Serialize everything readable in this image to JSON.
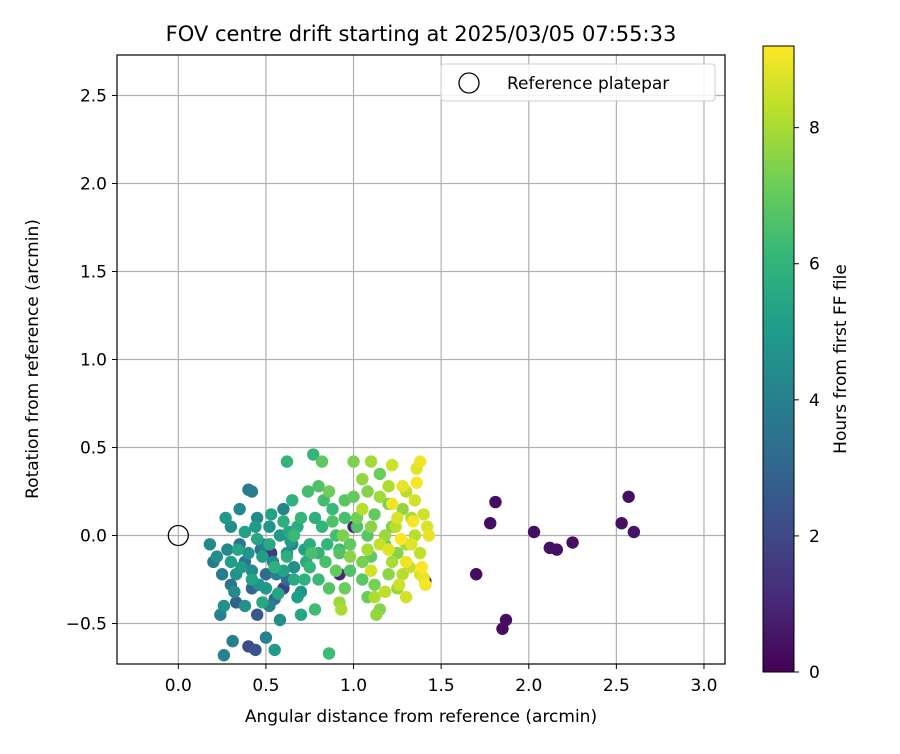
{
  "chart_data": {
    "type": "scatter",
    "title": "FOV centre drift starting at 2025/03/05 07:55:33",
    "xlabel": "Angular distance from reference (arcmin)",
    "ylabel": "Rotation from reference (arcmin)",
    "xlim": [
      -0.35,
      3.12
    ],
    "ylim": [
      -0.73,
      2.73
    ],
    "xticks": [
      0.0,
      0.5,
      1.0,
      1.5,
      2.0,
      2.5,
      3.0
    ],
    "yticks": [
      -0.5,
      0.0,
      0.5,
      1.0,
      1.5,
      2.0,
      2.5
    ],
    "grid": true,
    "legend": {
      "position": "top-right",
      "entries": [
        "Reference platepar"
      ]
    },
    "reference_point": {
      "x": 0.0,
      "y": 0.0,
      "label": "Reference platepar"
    },
    "colorbar": {
      "label": "Hours from first FF file",
      "colormap": "viridis",
      "range": [
        0,
        9.2
      ],
      "ticks": [
        0,
        2,
        4,
        6,
        8
      ]
    },
    "points": [
      {
        "x": 1.7,
        "y": -0.22,
        "h": 0.3
      },
      {
        "x": 1.78,
        "y": 0.07,
        "h": 0.3
      },
      {
        "x": 1.81,
        "y": 0.19,
        "h": 0.3
      },
      {
        "x": 1.85,
        "y": -0.53,
        "h": 0.3
      },
      {
        "x": 1.87,
        "y": -0.48,
        "h": 0.3
      },
      {
        "x": 2.03,
        "y": 0.02,
        "h": 0.4
      },
      {
        "x": 2.12,
        "y": -0.07,
        "h": 0.4
      },
      {
        "x": 2.16,
        "y": -0.08,
        "h": 0.4
      },
      {
        "x": 2.25,
        "y": -0.04,
        "h": 0.4
      },
      {
        "x": 2.53,
        "y": 0.07,
        "h": 0.4
      },
      {
        "x": 2.57,
        "y": 0.22,
        "h": 0.4
      },
      {
        "x": 2.6,
        "y": 0.02,
        "h": 0.5
      },
      {
        "x": 1.41,
        "y": -0.26,
        "h": 0.8
      },
      {
        "x": 1.0,
        "y": 0.05,
        "h": 0.9
      },
      {
        "x": 0.92,
        "y": -0.22,
        "h": 1.0
      },
      {
        "x": 0.53,
        "y": -0.1,
        "h": 1.5
      },
      {
        "x": 0.6,
        "y": -0.3,
        "h": 1.8
      },
      {
        "x": 0.4,
        "y": -0.63,
        "h": 2.0
      },
      {
        "x": 0.44,
        "y": -0.65,
        "h": 2.3
      },
      {
        "x": 0.45,
        "y": -0.45,
        "h": 2.5
      },
      {
        "x": 0.33,
        "y": -0.38,
        "h": 2.8
      },
      {
        "x": 0.42,
        "y": -0.3,
        "h": 3.0
      },
      {
        "x": 0.5,
        "y": -0.22,
        "h": 3.2
      },
      {
        "x": 0.55,
        "y": -0.36,
        "h": 3.3
      },
      {
        "x": 0.62,
        "y": -0.25,
        "h": 3.4
      },
      {
        "x": 0.38,
        "y": -0.15,
        "h": 3.5
      },
      {
        "x": 0.47,
        "y": -0.08,
        "h": 3.5
      },
      {
        "x": 0.3,
        "y": -0.28,
        "h": 3.6
      },
      {
        "x": 0.35,
        "y": -0.05,
        "h": 3.6
      },
      {
        "x": 0.2,
        "y": -0.15,
        "h": 3.7
      },
      {
        "x": 0.25,
        "y": -0.22,
        "h": 3.8
      },
      {
        "x": 0.4,
        "y": 0.26,
        "h": 3.8
      },
      {
        "x": 0.42,
        "y": 0.25,
        "h": 3.9
      },
      {
        "x": 0.31,
        "y": -0.6,
        "h": 3.9
      },
      {
        "x": 0.48,
        "y": -0.05,
        "h": 3.9
      },
      {
        "x": 0.52,
        "y": -0.4,
        "h": 4.0
      },
      {
        "x": 0.24,
        "y": -0.45,
        "h": 4.0
      },
      {
        "x": 0.26,
        "y": -0.68,
        "h": 4.1
      },
      {
        "x": 0.5,
        "y": -0.58,
        "h": 4.1
      },
      {
        "x": 0.56,
        "y": -0.22,
        "h": 4.1
      },
      {
        "x": 0.65,
        "y": -0.05,
        "h": 4.2
      },
      {
        "x": 0.6,
        "y": 0.15,
        "h": 4.2
      },
      {
        "x": 0.35,
        "y": 0.15,
        "h": 4.3
      },
      {
        "x": 0.45,
        "y": 0.1,
        "h": 4.3
      },
      {
        "x": 0.28,
        "y": -0.08,
        "h": 4.3
      },
      {
        "x": 0.18,
        "y": -0.05,
        "h": 4.4
      },
      {
        "x": 0.32,
        "y": -0.32,
        "h": 4.4
      },
      {
        "x": 0.54,
        "y": -0.15,
        "h": 4.4
      },
      {
        "x": 0.42,
        "y": -0.2,
        "h": 4.5
      },
      {
        "x": 0.58,
        "y": -0.48,
        "h": 4.5
      },
      {
        "x": 0.3,
        "y": 0.05,
        "h": 4.5
      },
      {
        "x": 0.26,
        "y": -0.4,
        "h": 4.6
      },
      {
        "x": 0.38,
        "y": -0.4,
        "h": 4.6
      },
      {
        "x": 0.66,
        "y": -0.18,
        "h": 4.6
      },
      {
        "x": 0.22,
        "y": -0.12,
        "h": 4.6
      },
      {
        "x": 0.46,
        "y": -0.28,
        "h": 4.7
      },
      {
        "x": 0.7,
        "y": -0.32,
        "h": 4.7
      },
      {
        "x": 0.33,
        "y": -0.22,
        "h": 4.7
      },
      {
        "x": 0.52,
        "y": 0.05,
        "h": 4.8
      },
      {
        "x": 0.62,
        "y": -0.1,
        "h": 4.8
      },
      {
        "x": 0.4,
        "y": -0.1,
        "h": 4.8
      },
      {
        "x": 0.27,
        "y": 0.1,
        "h": 4.9
      },
      {
        "x": 0.5,
        "y": -0.3,
        "h": 4.9
      },
      {
        "x": 0.58,
        "y": 0.0,
        "h": 4.9
      },
      {
        "x": 0.36,
        "y": -0.18,
        "h": 5.0
      },
      {
        "x": 0.44,
        "y": 0.05,
        "h": 5.0
      },
      {
        "x": 0.55,
        "y": -0.65,
        "h": 5.0
      },
      {
        "x": 0.68,
        "y": -0.35,
        "h": 5.1
      },
      {
        "x": 0.48,
        "y": -0.12,
        "h": 5.1
      },
      {
        "x": 0.64,
        "y": -0.03,
        "h": 5.1
      },
      {
        "x": 0.3,
        "y": -0.15,
        "h": 5.2
      },
      {
        "x": 0.72,
        "y": -0.08,
        "h": 5.2
      },
      {
        "x": 0.38,
        "y": 0.02,
        "h": 5.2
      },
      {
        "x": 0.6,
        "y": -0.2,
        "h": 5.3
      },
      {
        "x": 0.42,
        "y": -0.25,
        "h": 5.3
      },
      {
        "x": 0.53,
        "y": 0.12,
        "h": 5.3
      },
      {
        "x": 0.7,
        "y": -0.45,
        "h": 5.4
      },
      {
        "x": 0.34,
        "y": -0.08,
        "h": 5.4
      },
      {
        "x": 0.57,
        "y": -0.33,
        "h": 5.4
      },
      {
        "x": 0.45,
        "y": -0.02,
        "h": 5.5
      },
      {
        "x": 0.63,
        "y": 0.02,
        "h": 5.5
      },
      {
        "x": 0.48,
        "y": -0.38,
        "h": 5.5
      },
      {
        "x": 0.66,
        "y": -0.25,
        "h": 5.6
      },
      {
        "x": 0.73,
        "y": -0.15,
        "h": 5.6
      },
      {
        "x": 0.52,
        "y": -0.05,
        "h": 5.6
      },
      {
        "x": 0.6,
        "y": 0.08,
        "h": 5.7
      },
      {
        "x": 0.75,
        "y": -0.05,
        "h": 5.7
      },
      {
        "x": 0.68,
        "y": 0.05,
        "h": 5.7
      },
      {
        "x": 0.62,
        "y": -0.12,
        "h": 5.8
      },
      {
        "x": 0.78,
        "y": 0.1,
        "h": 5.8
      },
      {
        "x": 0.55,
        "y": -0.18,
        "h": 5.8
      },
      {
        "x": 0.8,
        "y": -0.1,
        "h": 5.9
      },
      {
        "x": 0.65,
        "y": 0.2,
        "h": 5.9
      },
      {
        "x": 0.72,
        "y": -0.25,
        "h": 5.9
      },
      {
        "x": 0.62,
        "y": 0.42,
        "h": 6.0
      },
      {
        "x": 0.77,
        "y": 0.46,
        "h": 6.0
      },
      {
        "x": 0.82,
        "y": 0.05,
        "h": 6.0
      },
      {
        "x": 0.7,
        "y": 0.1,
        "h": 6.1
      },
      {
        "x": 0.85,
        "y": -0.05,
        "h": 6.1
      },
      {
        "x": 0.75,
        "y": -0.18,
        "h": 6.1
      },
      {
        "x": 0.88,
        "y": 0.15,
        "h": 6.2
      },
      {
        "x": 0.66,
        "y": 0.0,
        "h": 6.2
      },
      {
        "x": 0.8,
        "y": -0.25,
        "h": 6.2
      },
      {
        "x": 0.86,
        "y": -0.67,
        "h": 6.3
      },
      {
        "x": 0.78,
        "y": -0.42,
        "h": 6.3
      },
      {
        "x": 0.92,
        "y": -0.08,
        "h": 6.3
      },
      {
        "x": 0.74,
        "y": 0.25,
        "h": 6.4
      },
      {
        "x": 0.83,
        "y": 0.2,
        "h": 6.4
      },
      {
        "x": 0.9,
        "y": 0.0,
        "h": 6.4
      },
      {
        "x": 0.76,
        "y": -0.1,
        "h": 6.5
      },
      {
        "x": 0.95,
        "y": 0.1,
        "h": 6.5
      },
      {
        "x": 0.84,
        "y": -0.15,
        "h": 6.5
      },
      {
        "x": 0.98,
        "y": -0.2,
        "h": 6.6
      },
      {
        "x": 0.88,
        "y": 0.08,
        "h": 6.6
      },
      {
        "x": 0.8,
        "y": 0.28,
        "h": 6.6
      },
      {
        "x": 1.02,
        "y": 0.05,
        "h": 6.7
      },
      {
        "x": 0.92,
        "y": -0.1,
        "h": 6.7
      },
      {
        "x": 0.86,
        "y": -0.3,
        "h": 6.7
      },
      {
        "x": 1.05,
        "y": -0.25,
        "h": 6.8
      },
      {
        "x": 0.95,
        "y": 0.2,
        "h": 6.8
      },
      {
        "x": 1.08,
        "y": 0.0,
        "h": 6.8
      },
      {
        "x": 0.82,
        "y": 0.42,
        "h": 6.9
      },
      {
        "x": 0.98,
        "y": -0.05,
        "h": 6.9
      },
      {
        "x": 1.1,
        "y": -0.12,
        "h": 6.9
      },
      {
        "x": 0.9,
        "y": -0.2,
        "h": 7.0
      },
      {
        "x": 1.12,
        "y": 0.12,
        "h": 7.0
      },
      {
        "x": 1.0,
        "y": 0.22,
        "h": 7.0
      },
      {
        "x": 1.15,
        "y": 0.35,
        "h": 7.1
      },
      {
        "x": 0.95,
        "y": -0.3,
        "h": 7.1
      },
      {
        "x": 1.08,
        "y": -0.35,
        "h": 7.1
      },
      {
        "x": 1.18,
        "y": -0.05,
        "h": 7.2
      },
      {
        "x": 1.02,
        "y": 0.1,
        "h": 7.2
      },
      {
        "x": 0.86,
        "y": 0.25,
        "h": 7.2
      },
      {
        "x": 1.2,
        "y": 0.18,
        "h": 7.3
      },
      {
        "x": 1.05,
        "y": -0.15,
        "h": 7.3
      },
      {
        "x": 1.12,
        "y": -0.28,
        "h": 7.3
      },
      {
        "x": 1.0,
        "y": 0.42,
        "h": 7.4
      },
      {
        "x": 1.22,
        "y": 0.05,
        "h": 7.4
      },
      {
        "x": 0.94,
        "y": 0.0,
        "h": 7.4
      },
      {
        "x": 1.15,
        "y": -0.42,
        "h": 7.5
      },
      {
        "x": 1.08,
        "y": 0.25,
        "h": 7.5
      },
      {
        "x": 1.25,
        "y": -0.1,
        "h": 7.5
      },
      {
        "x": 0.98,
        "y": -0.12,
        "h": 7.6
      },
      {
        "x": 1.1,
        "y": 0.05,
        "h": 7.6
      },
      {
        "x": 1.2,
        "y": -0.22,
        "h": 7.6
      },
      {
        "x": 1.13,
        "y": -0.45,
        "h": 7.7
      },
      {
        "x": 1.05,
        "y": 0.32,
        "h": 7.7
      },
      {
        "x": 1.28,
        "y": 0.15,
        "h": 7.7
      },
      {
        "x": 1.18,
        "y": 0.0,
        "h": 7.8
      },
      {
        "x": 0.92,
        "y": -0.38,
        "h": 7.8
      },
      {
        "x": 1.25,
        "y": -0.3,
        "h": 7.8
      },
      {
        "x": 1.1,
        "y": 0.42,
        "h": 7.9
      },
      {
        "x": 1.3,
        "y": -0.05,
        "h": 7.9
      },
      {
        "x": 1.15,
        "y": 0.22,
        "h": 7.9
      },
      {
        "x": 1.22,
        "y": -0.15,
        "h": 8.0
      },
      {
        "x": 1.08,
        "y": -0.08,
        "h": 8.0
      },
      {
        "x": 0.93,
        "y": -0.42,
        "h": 8.0
      },
      {
        "x": 1.33,
        "y": 0.1,
        "h": 8.1
      },
      {
        "x": 1.2,
        "y": 0.28,
        "h": 8.1
      },
      {
        "x": 1.12,
        "y": -0.35,
        "h": 8.1
      },
      {
        "x": 1.28,
        "y": -0.22,
        "h": 8.2
      },
      {
        "x": 1.35,
        "y": 0.0,
        "h": 8.2
      },
      {
        "x": 1.05,
        "y": 0.15,
        "h": 8.2
      },
      {
        "x": 1.18,
        "y": -0.32,
        "h": 8.3
      },
      {
        "x": 1.3,
        "y": 0.25,
        "h": 8.3
      },
      {
        "x": 1.24,
        "y": 0.05,
        "h": 8.3
      },
      {
        "x": 1.38,
        "y": -0.1,
        "h": 8.4
      },
      {
        "x": 1.15,
        "y": -0.05,
        "h": 8.4
      },
      {
        "x": 1.32,
        "y": -0.18,
        "h": 8.4
      },
      {
        "x": 1.22,
        "y": 0.4,
        "h": 8.5
      },
      {
        "x": 1.4,
        "y": 0.12,
        "h": 8.5
      },
      {
        "x": 1.26,
        "y": -0.28,
        "h": 8.5
      },
      {
        "x": 1.35,
        "y": 0.2,
        "h": 8.6
      },
      {
        "x": 1.1,
        "y": -0.2,
        "h": 8.6
      },
      {
        "x": 1.3,
        "y": -0.35,
        "h": 8.6
      },
      {
        "x": 1.38,
        "y": -0.22,
        "h": 8.7
      },
      {
        "x": 1.42,
        "y": 0.05,
        "h": 8.7
      },
      {
        "x": 1.25,
        "y": 0.1,
        "h": 8.7
      },
      {
        "x": 1.36,
        "y": 0.38,
        "h": 8.8
      },
      {
        "x": 1.2,
        "y": -0.08,
        "h": 8.8
      },
      {
        "x": 1.33,
        "y": -0.05,
        "h": 8.8
      },
      {
        "x": 1.4,
        "y": -0.24,
        "h": 8.9
      },
      {
        "x": 1.28,
        "y": 0.28,
        "h": 8.9
      },
      {
        "x": 1.43,
        "y": 0.0,
        "h": 8.9
      },
      {
        "x": 1.38,
        "y": 0.42,
        "h": 9.0
      },
      {
        "x": 1.3,
        "y": -0.15,
        "h": 9.0
      },
      {
        "x": 1.22,
        "y": 0.18,
        "h": 9.0
      },
      {
        "x": 1.36,
        "y": 0.3,
        "h": 9.1
      },
      {
        "x": 1.41,
        "y": -0.28,
        "h": 9.1
      },
      {
        "x": 1.34,
        "y": 0.08,
        "h": 9.1
      },
      {
        "x": 1.27,
        "y": -0.02,
        "h": 9.2
      },
      {
        "x": 1.39,
        "y": -0.18,
        "h": 9.2
      }
    ]
  }
}
